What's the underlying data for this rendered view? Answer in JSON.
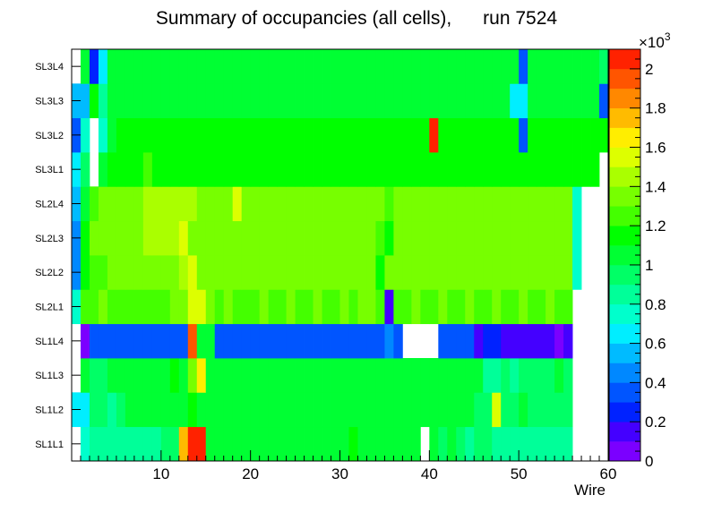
{
  "chart_data": {
    "type": "heatmap",
    "title": "Summary of occupancies (all cells),      run 7524",
    "xlabel": "Wire",
    "x_range": [
      0,
      60
    ],
    "x_ticks": [
      10,
      20,
      30,
      40,
      50,
      60
    ],
    "x_tick_labels": [
      "10",
      "20",
      "30",
      "40",
      "50",
      "60"
    ],
    "y_categories": [
      "SL1L1",
      "SL1L2",
      "SL1L3",
      "SL1L4",
      "SL2L1",
      "SL2L2",
      "SL2L3",
      "SL2L4",
      "SL3L1",
      "SL3L2",
      "SL3L3",
      "SL3L4"
    ],
    "z_range": [
      0,
      2100
    ],
    "z_multiplier_label": "×10",
    "z_multiplier_exponent": "3",
    "colorbar_ticks": [
      0,
      200,
      400,
      600,
      800,
      1000,
      1200,
      1400,
      1600,
      1800,
      2000
    ],
    "colorbar_tick_labels": [
      "0",
      "0.2",
      "0.4",
      "0.6",
      "0.8",
      "1",
      "1.2",
      "1.4",
      "1.6",
      "1.8",
      "2"
    ],
    "palette": [
      "#7b00ff",
      "#4400ff",
      "#0022ff",
      "#0055ff",
      "#0088ff",
      "#00bbff",
      "#00eeff",
      "#00ffcc",
      "#00ff99",
      "#00ff66",
      "#00ff33",
      "#00ff00",
      "#44ff00",
      "#77ff00",
      "#aaff00",
      "#ddff00",
      "#ffee00",
      "#ffbb00",
      "#ff8800",
      "#ff5500",
      "#ff2200"
    ],
    "rows": [
      {
        "layer": "SL1L1",
        "values": [
          null,
          700,
          800,
          800,
          800,
          800,
          800,
          800,
          850,
          850,
          900,
          950,
          1700,
          2050,
          2050,
          1050,
          1000,
          1050,
          1000,
          1000,
          1000,
          1050,
          1000,
          1000,
          1050,
          1000,
          1000,
          1050,
          1050,
          1000,
          1050,
          1100,
          1050,
          1000,
          1000,
          1050,
          1000,
          1000,
          1050,
          null,
          1000,
          950,
          1000,
          950,
          800,
          900,
          900,
          850,
          800,
          850,
          850,
          800,
          800,
          850,
          800,
          800,
          null,
          null,
          null,
          null
        ]
      },
      {
        "layer": "SL1L2",
        "values": [
          650,
          650,
          900,
          950,
          850,
          900,
          1000,
          1050,
          1000,
          1000,
          1050,
          1000,
          1050,
          1100,
          1000,
          1050,
          1000,
          1000,
          1000,
          1000,
          1000,
          1050,
          1000,
          1000,
          1050,
          1000,
          1050,
          1000,
          1000,
          1050,
          1000,
          1000,
          1050,
          1050,
          1000,
          1050,
          1000,
          1000,
          1050,
          1050,
          1000,
          1000,
          1050,
          1000,
          1000,
          900,
          900,
          1500,
          900,
          900,
          1000,
          950,
          950,
          900,
          950,
          950,
          null,
          null,
          null,
          null
        ]
      },
      {
        "layer": "SL1L3",
        "values": [
          null,
          1000,
          900,
          950,
          1000,
          1050,
          1000,
          1000,
          1050,
          1050,
          1000,
          1100,
          1050,
          1300,
          1650,
          1050,
          1000,
          1050,
          1000,
          1000,
          1050,
          1000,
          1000,
          1050,
          1000,
          1000,
          1000,
          1050,
          1000,
          1000,
          1050,
          1000,
          1000,
          1050,
          1000,
          1000,
          1050,
          1000,
          1000,
          1050,
          1000,
          1000,
          1050,
          1000,
          1000,
          1050,
          850,
          850,
          900,
          850,
          950,
          900,
          950,
          900,
          1000,
          950,
          null,
          null,
          null,
          null
        ]
      },
      {
        "layer": "SL1L4",
        "values": [
          null,
          80,
          300,
          300,
          300,
          300,
          300,
          300,
          300,
          300,
          350,
          350,
          350,
          1950,
          1000,
          1000,
          300,
          300,
          300,
          300,
          300,
          300,
          300,
          300,
          300,
          300,
          300,
          300,
          300,
          300,
          300,
          300,
          300,
          300,
          300,
          400,
          350,
          null,
          null,
          null,
          null,
          300,
          300,
          300,
          300,
          150,
          250,
          250,
          150,
          150,
          150,
          150,
          150,
          150,
          50,
          100,
          null,
          null,
          null,
          null
        ]
      },
      {
        "layer": "SL2L1",
        "values": [
          750,
          1200,
          1200,
          1300,
          1250,
          1250,
          1250,
          1250,
          1250,
          1250,
          1250,
          1300,
          1300,
          1500,
          1500,
          1300,
          1250,
          1300,
          1250,
          1250,
          1250,
          1300,
          1250,
          1250,
          1300,
          1250,
          1250,
          1300,
          1250,
          1250,
          1300,
          1250,
          1300,
          1300,
          1250,
          100,
          1200,
          1250,
          1300,
          1250,
          1250,
          1300,
          1250,
          1250,
          1300,
          1250,
          1250,
          1300,
          1250,
          1250,
          1300,
          1250,
          1250,
          1300,
          1250,
          1250,
          null,
          null,
          null,
          null
        ]
      },
      {
        "layer": "SL2L2",
        "values": [
          400,
          1150,
          1250,
          1250,
          1300,
          1300,
          1300,
          1300,
          1350,
          1350,
          1350,
          1350,
          1400,
          1500,
          1300,
          1300,
          1300,
          1300,
          1300,
          1300,
          1300,
          1350,
          1300,
          1300,
          1300,
          1350,
          1300,
          1300,
          1300,
          1300,
          1350,
          1300,
          1300,
          1350,
          1100,
          1300,
          1300,
          1300,
          1300,
          1300,
          1300,
          1300,
          1300,
          1300,
          1300,
          1300,
          1300,
          1300,
          1300,
          1300,
          1300,
          1300,
          1300,
          1300,
          1300,
          1300,
          750,
          null,
          null,
          null
        ]
      },
      {
        "layer": "SL2L3",
        "values": [
          400,
          1100,
          1300,
          1300,
          1300,
          1300,
          1350,
          1350,
          1400,
          1400,
          1400,
          1400,
          1500,
          1300,
          1350,
          1300,
          1300,
          1300,
          1300,
          1300,
          1300,
          1350,
          1300,
          1300,
          1300,
          1300,
          1300,
          1300,
          1300,
          1350,
          1300,
          1300,
          1300,
          1300,
          1250,
          1150,
          1300,
          1300,
          1300,
          1300,
          1300,
          1300,
          1300,
          1300,
          1300,
          1300,
          1300,
          1300,
          1300,
          1300,
          1300,
          1300,
          1300,
          1300,
          1300,
          1300,
          750,
          null,
          null,
          null
        ]
      },
      {
        "layer": "SL2L4",
        "values": [
          500,
          1050,
          1250,
          1300,
          1300,
          1300,
          1350,
          1350,
          1400,
          1400,
          1400,
          1400,
          1400,
          1400,
          1350,
          1350,
          1350,
          1350,
          1500,
          1300,
          1300,
          1300,
          1300,
          1300,
          1300,
          1300,
          1300,
          1300,
          1300,
          1300,
          1300,
          1300,
          1300,
          1300,
          1300,
          1250,
          1300,
          1300,
          1300,
          1300,
          1300,
          1300,
          1300,
          1300,
          1300,
          1300,
          1300,
          1300,
          1300,
          1300,
          1300,
          1300,
          1300,
          1300,
          1300,
          1300,
          750,
          null,
          null,
          null
        ]
      },
      {
        "layer": "SL3L1",
        "values": [
          600,
          950,
          null,
          1050,
          1150,
          1150,
          1150,
          1150,
          1200,
          1150,
          1150,
          1150,
          1150,
          1150,
          1150,
          1150,
          1150,
          1150,
          1150,
          1150,
          1150,
          1150,
          1150,
          1150,
          1150,
          1150,
          1150,
          1150,
          1150,
          1150,
          1150,
          1150,
          1150,
          1150,
          1150,
          1150,
          1150,
          1150,
          1150,
          1150,
          1150,
          1150,
          1150,
          1150,
          1150,
          1150,
          1150,
          1150,
          1150,
          1150,
          1150,
          1150,
          1150,
          1150,
          1150,
          1150,
          1150,
          1150,
          1150,
          null
        ]
      },
      {
        "layer": "SL3L2",
        "values": [
          300,
          700,
          null,
          700,
          1000,
          1150,
          1150,
          1150,
          1150,
          1150,
          1150,
          1150,
          1150,
          1150,
          1150,
          1150,
          1150,
          1150,
          1150,
          1150,
          1150,
          1150,
          1150,
          1150,
          1150,
          1150,
          1150,
          1150,
          1150,
          1150,
          1150,
          1150,
          1150,
          1150,
          1150,
          1150,
          1150,
          1150,
          1150,
          1150,
          2000,
          1150,
          1150,
          1150,
          1150,
          1150,
          1150,
          1150,
          1150,
          1150,
          300,
          1150,
          1150,
          1150,
          1150,
          1150,
          1150,
          1150,
          1150,
          1150
        ]
      },
      {
        "layer": "SL3L3",
        "values": [
          500,
          500,
          1100,
          850,
          1050,
          1050,
          1050,
          1050,
          1050,
          1050,
          1050,
          1050,
          1050,
          1050,
          1050,
          1050,
          1050,
          1050,
          1050,
          1050,
          1050,
          1050,
          1050,
          1050,
          1050,
          1050,
          1050,
          1050,
          1050,
          1050,
          1050,
          1050,
          1050,
          1050,
          1050,
          1050,
          1050,
          1050,
          1050,
          1050,
          1050,
          1050,
          1050,
          1050,
          1050,
          1050,
          1050,
          1050,
          1050,
          600,
          600,
          1050,
          1050,
          1050,
          1050,
          1050,
          1050,
          1050,
          1050,
          300
        ]
      },
      {
        "layer": "SL3L4",
        "values": [
          null,
          1050,
          250,
          600,
          1000,
          1000,
          1050,
          1050,
          1050,
          1050,
          1050,
          1050,
          1050,
          1050,
          1050,
          1050,
          1050,
          1050,
          1050,
          1050,
          1050,
          1050,
          1050,
          1050,
          1050,
          1050,
          1050,
          1050,
          1050,
          1050,
          1050,
          1050,
          1050,
          1050,
          1050,
          1050,
          1050,
          1050,
          1050,
          1050,
          1050,
          1050,
          1050,
          1050,
          1050,
          1050,
          1050,
          1050,
          1050,
          1050,
          300,
          1050,
          1050,
          1050,
          1050,
          1050,
          1050,
          1050,
          1050,
          900
        ]
      }
    ]
  }
}
